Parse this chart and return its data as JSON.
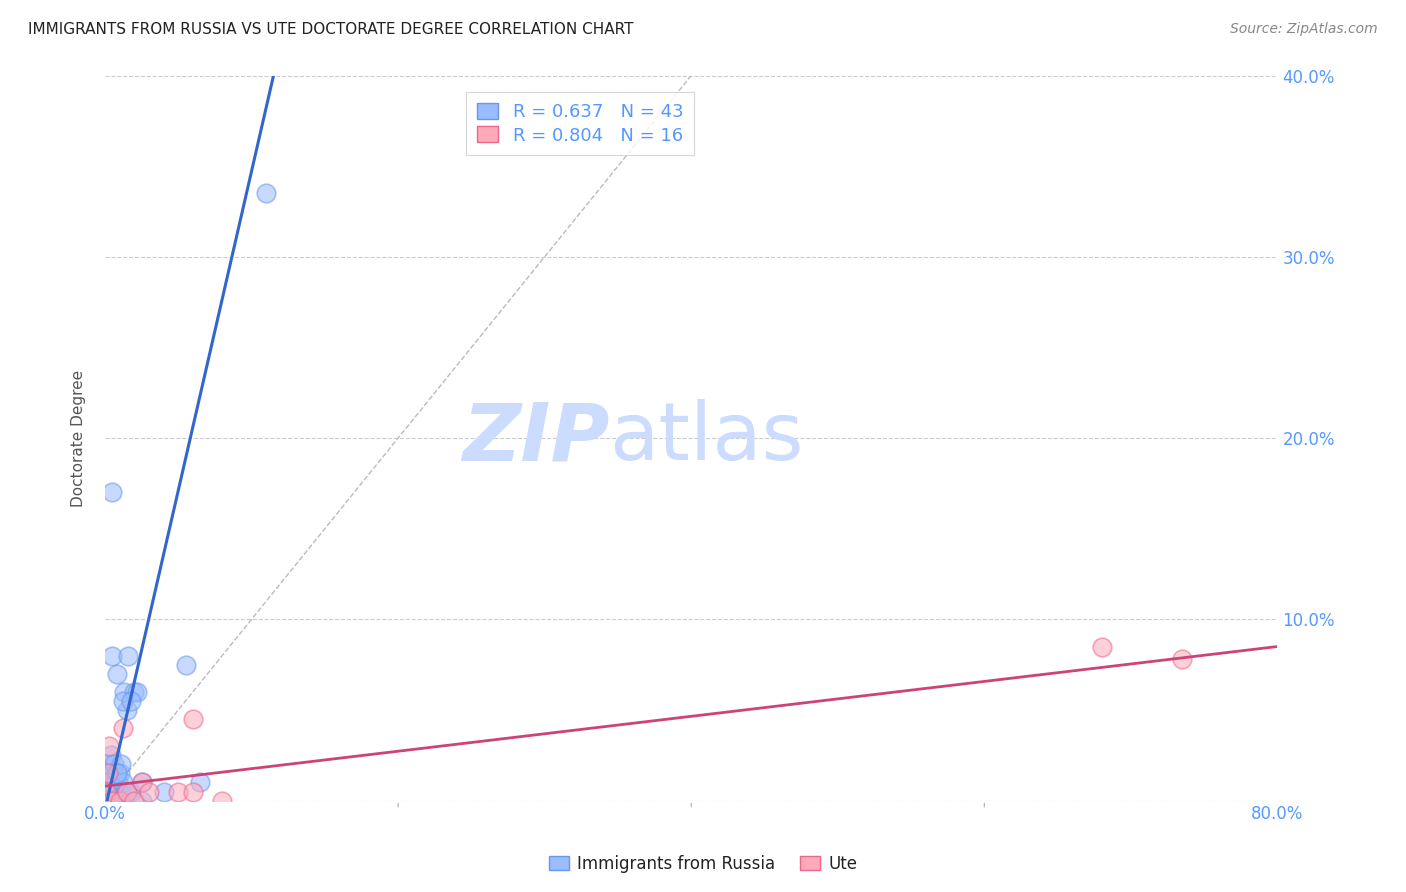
{
  "title": "IMMIGRANTS FROM RUSSIA VS UTE DOCTORATE DEGREE CORRELATION CHART",
  "source": "Source: ZipAtlas.com",
  "ylabel": "Doctorate Degree",
  "xlim": [
    0,
    0.8
  ],
  "ylim": [
    0,
    0.4
  ],
  "xtick_positions": [
    0.0,
    0.2,
    0.4,
    0.6,
    0.8
  ],
  "xtick_labels_visible": {
    "0.0": "0.0%",
    "0.80": "80.0%"
  },
  "ytick_positions": [
    0.0,
    0.1,
    0.2,
    0.3,
    0.4
  ],
  "ytick_labels": [
    "",
    "10.0%",
    "20.0%",
    "30.0%",
    "40.0%"
  ],
  "blue_color": "#99bbff",
  "blue_edge_color": "#6699ee",
  "pink_color": "#ffaabb",
  "pink_edge_color": "#ee6688",
  "blue_line_color": "#3366cc",
  "pink_line_color": "#cc4477",
  "diag_line_color": "#bbbbbb",
  "legend_r_blue": "0.637",
  "legend_n_blue": "43",
  "legend_r_pink": "0.804",
  "legend_n_pink": "16",
  "blue_points_x": [
    0.001,
    0.001,
    0.002,
    0.002,
    0.003,
    0.003,
    0.004,
    0.004,
    0.005,
    0.005,
    0.005,
    0.006,
    0.006,
    0.007,
    0.007,
    0.008,
    0.008,
    0.009,
    0.01,
    0.01,
    0.011,
    0.012,
    0.013,
    0.014,
    0.015,
    0.016,
    0.018,
    0.02,
    0.022,
    0.025,
    0.001,
    0.002,
    0.003,
    0.004,
    0.005,
    0.008,
    0.012,
    0.018,
    0.025,
    0.04,
    0.055,
    0.065,
    0.11
  ],
  "blue_points_y": [
    0.01,
    0.005,
    0.015,
    0.005,
    0.02,
    0.01,
    0.025,
    0.005,
    0.015,
    0.005,
    0.08,
    0.02,
    0.005,
    0.01,
    0.003,
    0.015,
    0.07,
    0.01,
    0.015,
    0.005,
    0.02,
    0.01,
    0.06,
    0.005,
    0.05,
    0.08,
    0.005,
    0.06,
    0.06,
    0.0,
    0.005,
    0.003,
    0.01,
    0.0,
    0.17,
    0.015,
    0.055,
    0.055,
    0.01,
    0.005,
    0.075,
    0.01,
    0.335
  ],
  "pink_points_x": [
    0.001,
    0.002,
    0.003,
    0.005,
    0.01,
    0.012,
    0.015,
    0.02,
    0.025,
    0.03,
    0.05,
    0.06,
    0.06,
    0.08,
    0.68,
    0.735
  ],
  "pink_points_y": [
    0.005,
    0.015,
    0.03,
    0.0,
    0.0,
    0.04,
    0.005,
    0.0,
    0.01,
    0.005,
    0.005,
    0.005,
    0.045,
    0.0,
    0.085,
    0.078
  ],
  "blue_line_x": [
    0.0,
    0.115
  ],
  "blue_line_y": [
    -0.005,
    0.4
  ],
  "pink_line_x": [
    0.0,
    0.8
  ],
  "pink_line_y": [
    0.008,
    0.085
  ],
  "diag_line_x": [
    0.0,
    0.4
  ],
  "diag_line_y": [
    0.0,
    0.4
  ],
  "background_color": "#ffffff",
  "grid_color": "#cccccc",
  "title_color": "#222222",
  "tick_color": "#5599ff",
  "watermark_zip": "ZIP",
  "watermark_atlas": "atlas",
  "watermark_color": "#ccdcff"
}
